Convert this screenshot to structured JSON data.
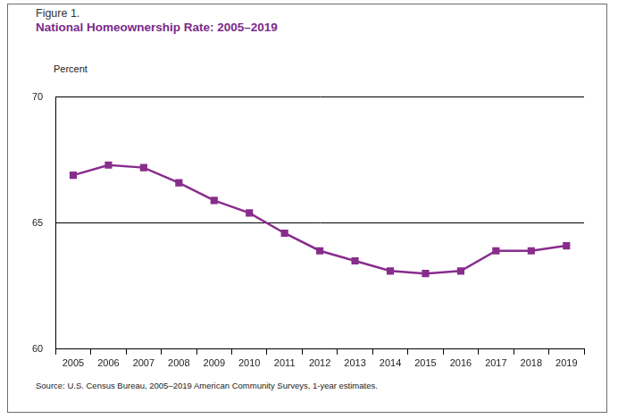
{
  "chart_data": {
    "type": "line",
    "subtitle": "Figure 1.",
    "title": "National Homeownership Rate: 2005–2019",
    "ylabel": "Percent",
    "note": "Source: U.S. Census Bureau, 2005–2019 American Community Surveys, 1-year estimates.",
    "categories": [
      "2005",
      "2006",
      "2007",
      "2008",
      "2009",
      "2010",
      "2011",
      "2012",
      "2013",
      "2014",
      "2015",
      "2016",
      "2017",
      "2018",
      "2019"
    ],
    "values": [
      66.9,
      67.3,
      67.2,
      66.6,
      65.9,
      65.4,
      64.6,
      63.9,
      63.5,
      63.1,
      63.0,
      63.1,
      63.9,
      63.9,
      64.1
    ],
    "color": "#882d8c",
    "marker": "square",
    "ylim": [
      60,
      70
    ],
    "yticks": [
      60,
      65,
      70
    ],
    "grid": true
  }
}
